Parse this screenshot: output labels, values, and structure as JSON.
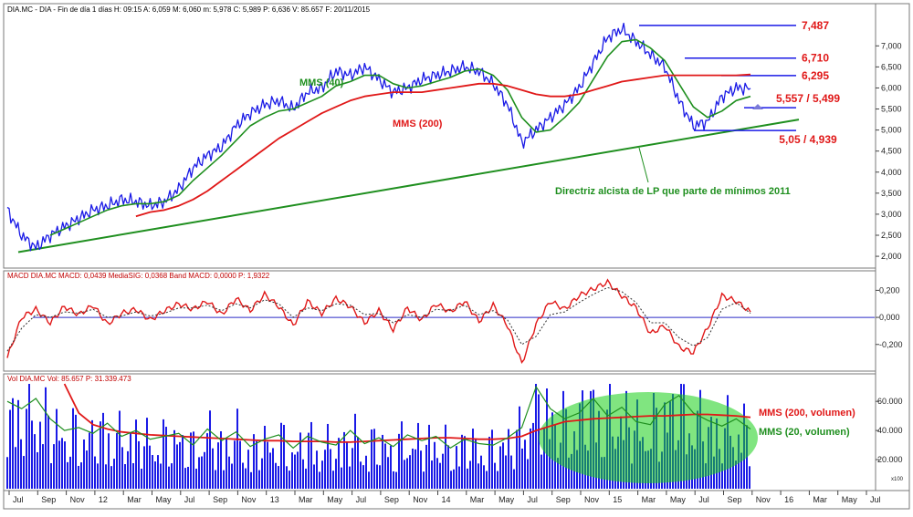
{
  "colors": {
    "price": "#1a1ae6",
    "mms40": "#1f8f1f",
    "mms200": "#e01818",
    "trend": "#1f8f1f",
    "levels": "#1a1ae6",
    "label_red": "#e01818",
    "label_green": "#1f8f1f",
    "macd": "#e01818",
    "macd_signal": "#333333",
    "vol_bar": "#1a1ae6",
    "vol_ellipse": "#18d018",
    "grid_header": "#c00000"
  },
  "headers": {
    "price": "DIA.MC - DIA - Fin de día 1 días H: 09:15 A: 6,059 M: 6,060 m: 5,978 C: 5,989 P: 6,636 V: 85.657 F: 20/11/2015",
    "macd": "MACD  DIA.MC  MACD: 0,0439  MediaSIG: 0,0368  Band  MACD: 0,0000  P: 1,9322",
    "volume": "Vol  DIA.MC  Vol: 85.657  P: 31.339.473"
  },
  "annotations": {
    "mms40": "MMS (40)",
    "mms200": "MMS (200)",
    "trendline": "Directriz alcista de LP que parte de mínimos 2011",
    "mms200_vol": "MMS (200, volumen)",
    "mms20_vol": "MMS (20, volumen)",
    "vol_axis_unit": "x100"
  },
  "chart_data": [
    {
      "type": "line",
      "panel": "price",
      "title": "DIA.MC - DIA",
      "y_ticks": [
        "7,000",
        "6,500",
        "6,000",
        "5,500",
        "5,000",
        "4,500",
        "4,000",
        "3,500",
        "3,000",
        "2,500",
        "2,000"
      ],
      "ylim": [
        1.85,
        7.7
      ],
      "series": [
        {
          "name": "",
          "values": [
            3.1,
            2.5,
            2.2,
            2.5,
            2.7,
            2.9,
            3.1,
            3.2,
            3.35,
            3.3,
            3.2,
            3.3,
            3.6,
            4.1,
            4.4,
            4.6,
            5.1,
            5.4,
            5.6,
            5.7,
            5.5,
            5.9,
            6.0,
            6.4,
            6.3,
            6.5,
            6.2,
            5.9,
            6.0,
            6.2,
            6.3,
            6.4,
            6.5,
            6.4,
            6.1,
            5.6,
            4.7,
            5.0,
            5.3,
            5.6,
            6.0,
            6.6,
            7.2,
            7.4,
            7.1,
            6.8,
            6.5,
            5.7,
            5.1,
            5.2,
            5.8,
            6.0,
            5.99
          ]
        },
        {
          "name": "MMS (40)",
          "values": [
            null,
            null,
            null,
            2.5,
            2.65,
            2.8,
            2.95,
            3.1,
            3.2,
            3.25,
            3.25,
            3.3,
            3.45,
            3.8,
            4.1,
            4.4,
            4.75,
            5.1,
            5.3,
            5.45,
            5.5,
            5.65,
            5.8,
            6.05,
            6.15,
            6.3,
            6.3,
            6.1,
            6.0,
            6.05,
            6.15,
            6.25,
            6.4,
            6.45,
            6.3,
            5.95,
            5.3,
            4.95,
            5.0,
            5.3,
            5.65,
            6.2,
            6.75,
            7.1,
            7.15,
            6.95,
            6.65,
            6.1,
            5.55,
            5.3,
            5.45,
            5.7,
            5.8
          ]
        },
        {
          "name": "MMS (200)",
          "values": [
            null,
            null,
            null,
            null,
            null,
            null,
            null,
            null,
            null,
            2.95,
            3.05,
            3.1,
            3.2,
            3.35,
            3.55,
            3.8,
            4.05,
            4.3,
            4.55,
            4.8,
            5.0,
            5.2,
            5.4,
            5.55,
            5.7,
            5.8,
            5.85,
            5.9,
            5.9,
            5.9,
            5.95,
            6.0,
            6.05,
            6.1,
            6.1,
            6.05,
            5.95,
            5.85,
            5.8,
            5.8,
            5.85,
            5.95,
            6.05,
            6.15,
            6.2,
            6.25,
            6.3,
            6.3,
            6.3,
            6.3,
            6.3,
            6.3,
            6.32
          ]
        }
      ],
      "levels": [
        {
          "label": "7,487",
          "value": 7.487
        },
        {
          "label": "6,710",
          "value": 6.71
        },
        {
          "label": "6,295",
          "value": 6.295
        },
        {
          "label": "5,557 / 5,499",
          "value": 5.53
        },
        {
          "label": "5,05 / 4,939",
          "value": 4.99
        }
      ],
      "trendline": {
        "from": 2.1,
        "to": 5.25
      }
    },
    {
      "type": "line",
      "panel": "macd",
      "title": "MACD",
      "y_ticks": [
        "0,200",
        "0,000",
        "-0,200"
      ],
      "ylim": [
        -0.37,
        0.27
      ],
      "series": [
        {
          "name": "MACD",
          "values": [
            -0.3,
            0.0,
            0.06,
            -0.04,
            0.08,
            0.02,
            0.09,
            -0.05,
            0.03,
            0.06,
            -0.02,
            0.05,
            0.1,
            0.06,
            0.12,
            0.02,
            0.14,
            0.05,
            0.17,
            0.08,
            -0.06,
            0.12,
            0.03,
            0.14,
            0.08,
            -0.04,
            0.05,
            -0.09,
            0.07,
            -0.02,
            0.1,
            0.04,
            0.12,
            -0.03,
            0.09,
            -0.06,
            -0.34,
            -0.05,
            0.12,
            0.06,
            0.16,
            0.21,
            0.26,
            0.16,
            0.07,
            -0.12,
            -0.06,
            -0.22,
            -0.26,
            -0.08,
            0.16,
            0.12,
            0.04
          ]
        },
        {
          "name": "MediaSIG",
          "values": [
            -0.25,
            -0.08,
            0.02,
            0.0,
            0.04,
            0.03,
            0.06,
            0.0,
            0.01,
            0.04,
            0.01,
            0.03,
            0.07,
            0.07,
            0.09,
            0.05,
            0.1,
            0.07,
            0.13,
            0.1,
            0.0,
            0.07,
            0.05,
            0.1,
            0.09,
            0.02,
            0.03,
            -0.04,
            0.02,
            0.0,
            0.06,
            0.05,
            0.09,
            0.02,
            0.05,
            -0.02,
            -0.2,
            -0.14,
            0.02,
            0.04,
            0.11,
            0.17,
            0.22,
            0.19,
            0.11,
            -0.04,
            -0.04,
            -0.15,
            -0.21,
            -0.15,
            0.06,
            0.11,
            0.03
          ]
        }
      ]
    },
    {
      "type": "bar",
      "panel": "volume",
      "title": "Vol DIA.MC",
      "y_ticks": [
        "60.000",
        "40.000",
        "20.000"
      ],
      "ylim": [
        0,
        72000
      ],
      "x_ticks": [
        "Jul",
        "Sep",
        "Nov",
        "12",
        "Mar",
        "May",
        "Jul",
        "Sep",
        "Nov",
        "13",
        "Mar",
        "May",
        "Jul",
        "Sep",
        "Nov",
        "14",
        "Mar",
        "May",
        "Jul",
        "Sep",
        "Nov",
        "15",
        "Mar",
        "May",
        "Jul",
        "Sep",
        "Nov",
        "16",
        "Mar",
        "May",
        "Jul"
      ],
      "series": [
        {
          "name": "MMS (200, volumen)",
          "values": [
            null,
            null,
            null,
            null,
            72000,
            52000,
            44000,
            41000,
            39000,
            38000,
            37000,
            36500,
            36000,
            35500,
            35000,
            34500,
            34000,
            33500,
            33000,
            33000,
            32500,
            32500,
            32500,
            32000,
            32000,
            32500,
            33000,
            33500,
            34000,
            34500,
            35000,
            35000,
            34500,
            34000,
            34000,
            34500,
            36000,
            40000,
            43000,
            46000,
            47000,
            48000,
            48500,
            49000,
            49500,
            50000,
            50000,
            50500,
            51000,
            51000,
            50500,
            50000,
            49000
          ]
        },
        {
          "name": "MMS (20, volumen)",
          "values": [
            60000,
            55000,
            62000,
            48000,
            40000,
            42000,
            38000,
            45000,
            36000,
            40000,
            34000,
            36000,
            38000,
            30000,
            41000,
            33000,
            39000,
            29000,
            34000,
            37000,
            28000,
            36000,
            32000,
            30000,
            40000,
            31000,
            35000,
            29000,
            37000,
            33000,
            36000,
            28000,
            34000,
            31000,
            30000,
            35000,
            42000,
            70000,
            55000,
            48000,
            52000,
            62000,
            50000,
            56000,
            46000,
            44000,
            58000,
            64000,
            52000,
            47000,
            43000,
            48000,
            41000
          ]
        }
      ]
    }
  ]
}
